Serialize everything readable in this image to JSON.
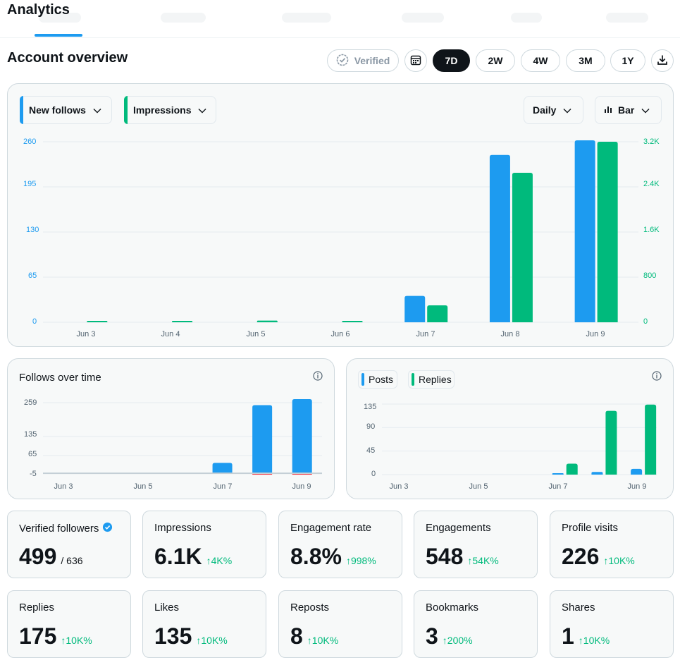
{
  "header": {
    "title": "Analytics"
  },
  "overview": {
    "title": "Account overview",
    "verified_label": "Verified",
    "ranges": [
      "7D",
      "2W",
      "4W",
      "3M",
      "1Y"
    ],
    "active_range": "7D"
  },
  "main_chart": {
    "metric1_label": "New follows",
    "metric2_label": "Impressions",
    "granularity_label": "Daily",
    "chart_type_label": "Bar",
    "left_ticks": [
      "260",
      "195",
      "130",
      "65",
      "0"
    ],
    "right_ticks": [
      "3.2K",
      "2.4K",
      "1.6K",
      "800",
      "0"
    ],
    "x_labels": [
      "Jun 3",
      "Jun 4",
      "Jun 5",
      "Jun 6",
      "Jun 7",
      "Jun 8",
      "Jun 9"
    ]
  },
  "follows_chart": {
    "title": "Follows over time",
    "y_ticks": [
      "259",
      "135",
      "65",
      "-5"
    ],
    "x_labels": [
      "Jun 3",
      "Jun 5",
      "Jun 7",
      "Jun 9"
    ]
  },
  "posts_chart": {
    "posts_label": "Posts",
    "replies_label": "Replies",
    "y_ticks": [
      "135",
      "90",
      "45",
      "0"
    ],
    "x_labels": [
      "Jun 3",
      "Jun 5",
      "Jun 7",
      "Jun 9"
    ]
  },
  "stats": [
    {
      "name": "Verified followers",
      "value": "499",
      "sub": "/ 636",
      "delta": "",
      "verified": true
    },
    {
      "name": "Impressions",
      "value": "6.1K",
      "sub": "",
      "delta": "↑4K%"
    },
    {
      "name": "Engagement rate",
      "value": "8.8%",
      "sub": "",
      "delta": "↑998%"
    },
    {
      "name": "Engagements",
      "value": "548",
      "sub": "",
      "delta": "↑54K%"
    },
    {
      "name": "Profile visits",
      "value": "226",
      "sub": "",
      "delta": "↑10K%"
    },
    {
      "name": "Replies",
      "value": "175",
      "sub": "",
      "delta": "↑10K%"
    },
    {
      "name": "Likes",
      "value": "135",
      "sub": "",
      "delta": "↑10K%"
    },
    {
      "name": "Reposts",
      "value": "8",
      "sub": "",
      "delta": "↑10K%"
    },
    {
      "name": "Bookmarks",
      "value": "3",
      "sub": "",
      "delta": "↑200%"
    },
    {
      "name": "Shares",
      "value": "1",
      "sub": "",
      "delta": "↑10K%"
    }
  ],
  "colors": {
    "blue": "#1d9bf0",
    "green": "#00ba7c",
    "dark": "#0f1419"
  },
  "chart_data": [
    {
      "type": "bar",
      "categories": [
        "Jun 3",
        "Jun 4",
        "Jun 5",
        "Jun 6",
        "Jun 7",
        "Jun 8",
        "Jun 9"
      ],
      "series": [
        {
          "name": "New follows",
          "axis": "left",
          "values": [
            0,
            0,
            0,
            0,
            38,
            241,
            262
          ]
        },
        {
          "name": "Impressions",
          "axis": "right",
          "values": [
            25,
            15,
            30,
            15,
            300,
            2650,
            3200
          ]
        }
      ],
      "ylim_left": [
        0,
        260
      ],
      "ylim_right": [
        0,
        3200
      ]
    },
    {
      "type": "bar",
      "title": "Follows over time",
      "categories": [
        "Jun 3",
        "Jun 4",
        "Jun 5",
        "Jun 6",
        "Jun 7",
        "Jun 8",
        "Jun 9"
      ],
      "series": [
        {
          "values": [
            0,
            0,
            0,
            0,
            38,
            250,
            272
          ]
        },
        {
          "values": [
            0,
            0,
            0,
            0,
            0,
            -6,
            -5
          ]
        }
      ],
      "ylim": [
        -5,
        259
      ]
    },
    {
      "type": "bar",
      "categories": [
        "Jun 3",
        "Jun 4",
        "Jun 5",
        "Jun 6",
        "Jun 7",
        "Jun 8",
        "Jun 9"
      ],
      "series": [
        {
          "name": "Posts",
          "values": [
            0,
            0,
            0,
            0,
            1,
            5,
            11
          ]
        },
        {
          "name": "Replies",
          "values": [
            0,
            0,
            0,
            0,
            21,
            122,
            134
          ]
        }
      ],
      "ylim": [
        0,
        135
      ]
    }
  ]
}
